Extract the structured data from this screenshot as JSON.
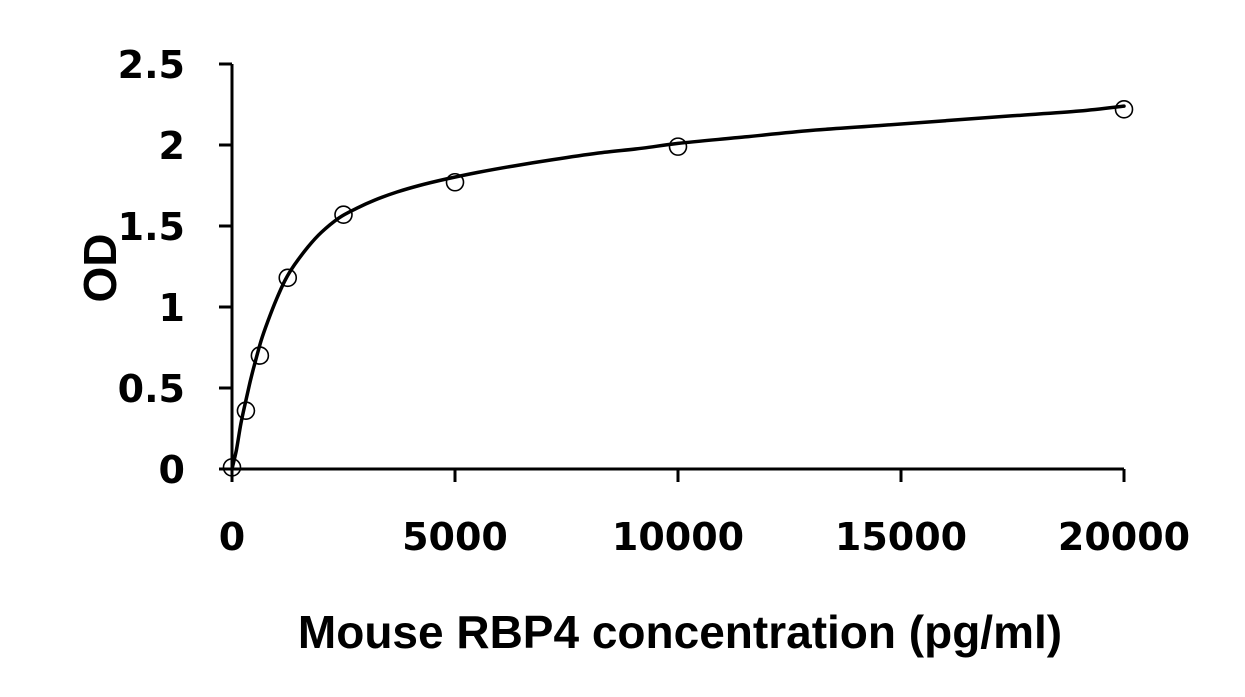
{
  "chart_data": {
    "type": "scatter",
    "title": "",
    "xlabel": "Mouse RBP4 concentration (pg/ml)",
    "ylabel": "OD",
    "xlim": [
      0,
      20000
    ],
    "ylim": [
      0,
      2.5
    ],
    "x_ticks": [
      0,
      5000,
      10000,
      15000,
      20000
    ],
    "y_ticks": [
      0,
      0.5,
      1,
      1.5,
      2,
      2.5
    ],
    "x_tick_labels": [
      "0",
      "5000",
      "10000",
      "15000",
      "20000"
    ],
    "y_tick_labels": [
      "0",
      "0.5",
      "1",
      "1.5",
      "2",
      "2.5"
    ],
    "grid": false,
    "legend": "none",
    "series": [
      {
        "marker": "open-circle",
        "color": "#000000",
        "x": [
          0,
          312.5,
          625,
          1250,
          2500,
          5000,
          10000,
          20000
        ],
        "y": [
          0.01,
          0.36,
          0.7,
          1.18,
          1.57,
          1.77,
          1.99,
          2.22
        ]
      }
    ],
    "fit_curve": {
      "color": "#000000",
      "x": [
        0,
        100,
        200,
        300,
        400,
        500,
        650,
        800,
        1000,
        1200,
        1400,
        1700,
        2000,
        2400,
        2800,
        3200,
        3700,
        4200,
        4800,
        5500,
        6300,
        7200,
        8200,
        9200,
        10000,
        11500,
        13000,
        14500,
        16000,
        17500,
        19000,
        20000
      ],
      "y": [
        0.0,
        0.12,
        0.28,
        0.41,
        0.53,
        0.64,
        0.79,
        0.91,
        1.05,
        1.17,
        1.26,
        1.37,
        1.46,
        1.55,
        1.61,
        1.66,
        1.71,
        1.75,
        1.79,
        1.83,
        1.87,
        1.91,
        1.95,
        1.98,
        2.01,
        2.05,
        2.09,
        2.12,
        2.15,
        2.18,
        2.21,
        2.24
      ]
    }
  }
}
